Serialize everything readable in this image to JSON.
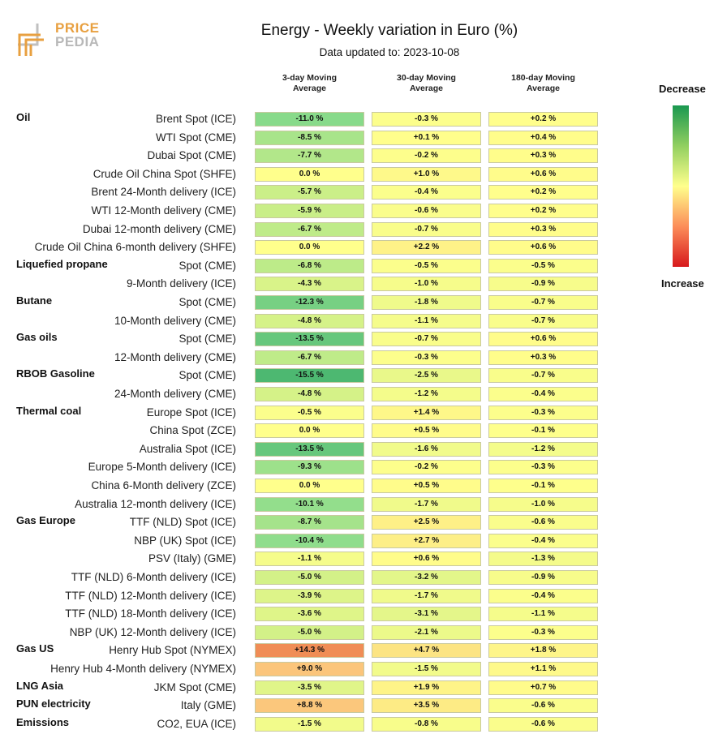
{
  "header": {
    "logo_line1": "PRICE",
    "logo_line2": "PEDIA",
    "title": "Energy - Weekly variation in Euro (%)",
    "subtitle": "Data updated to: 2023-10-08"
  },
  "legend": {
    "top_label": "Decrease",
    "bottom_label": "Increase",
    "colors": [
      "#1a9850",
      "#91cf60",
      "#ffff8c",
      "#fc8d59",
      "#d7191c"
    ]
  },
  "chart_data": {
    "type": "table",
    "title": "Energy - Weekly variation in Euro (%)",
    "columns": [
      {
        "line1": "3-day Moving",
        "line2": "Average"
      },
      {
        "line1": "30-day Moving",
        "line2": "Average"
      },
      {
        "line1": "180-day Moving",
        "line2": "Average"
      }
    ],
    "rows": [
      {
        "group": "Oil",
        "label": "Brent Spot (ICE)",
        "values": [
          -11.0,
          -0.3,
          0.2
        ],
        "display": [
          "-11.0 %",
          "-0.3 %",
          "+0.2 %"
        ]
      },
      {
        "group": "",
        "label": "WTI Spot (CME)",
        "values": [
          -8.5,
          0.1,
          0.4
        ],
        "display": [
          "-8.5 %",
          "+0.1 %",
          "+0.4 %"
        ]
      },
      {
        "group": "",
        "label": "Dubai Spot (CME)",
        "values": [
          -7.7,
          -0.2,
          0.3
        ],
        "display": [
          "-7.7 %",
          "-0.2 %",
          "+0.3 %"
        ]
      },
      {
        "group": "",
        "label": "Crude Oil China Spot (SHFE)",
        "values": [
          0.0,
          1.0,
          0.6
        ],
        "display": [
          "0.0 %",
          "+1.0 %",
          "+0.6 %"
        ]
      },
      {
        "group": "",
        "label": "Brent 24-Month delivery (ICE)",
        "values": [
          -5.7,
          -0.4,
          0.2
        ],
        "display": [
          "-5.7 %",
          "-0.4 %",
          "+0.2 %"
        ]
      },
      {
        "group": "",
        "label": "WTI 12-Month delivery (CME)",
        "values": [
          -5.9,
          -0.6,
          0.2
        ],
        "display": [
          "-5.9 %",
          "-0.6 %",
          "+0.2 %"
        ]
      },
      {
        "group": "",
        "label": "Dubai 12-month delivery (CME)",
        "values": [
          -6.7,
          -0.7,
          0.3
        ],
        "display": [
          "-6.7 %",
          "-0.7 %",
          "+0.3 %"
        ]
      },
      {
        "group": "",
        "label": "Crude Oil China 6-month delivery (SHFE)",
        "values": [
          0.0,
          2.2,
          0.6
        ],
        "display": [
          "0.0 %",
          "+2.2 %",
          "+0.6 %"
        ]
      },
      {
        "group": "Liquefied propane",
        "label": "Spot (CME)",
        "values": [
          -6.8,
          -0.5,
          -0.5
        ],
        "display": [
          "-6.8 %",
          "-0.5 %",
          "-0.5 %"
        ]
      },
      {
        "group": "",
        "label": "9-Month delivery (ICE)",
        "values": [
          -4.3,
          -1.0,
          -0.9
        ],
        "display": [
          "-4.3 %",
          "-1.0 %",
          "-0.9 %"
        ]
      },
      {
        "group": "Butane",
        "label": "Spot (CME)",
        "values": [
          -12.3,
          -1.8,
          -0.7
        ],
        "display": [
          "-12.3 %",
          "-1.8 %",
          "-0.7 %"
        ]
      },
      {
        "group": "",
        "label": "10-Month delivery (CME)",
        "values": [
          -4.8,
          -1.1,
          -0.7
        ],
        "display": [
          "-4.8 %",
          "-1.1 %",
          "-0.7 %"
        ]
      },
      {
        "group": "Gas oils",
        "label": "Spot (CME)",
        "values": [
          -13.5,
          -0.7,
          0.6
        ],
        "display": [
          "-13.5 %",
          "-0.7 %",
          "+0.6 %"
        ]
      },
      {
        "group": "",
        "label": "12-Month delivery (CME)",
        "values": [
          -6.7,
          -0.3,
          0.3
        ],
        "display": [
          "-6.7 %",
          "-0.3 %",
          "+0.3 %"
        ]
      },
      {
        "group": "RBOB Gasoline",
        "label": "Spot (CME)",
        "values": [
          -15.5,
          -2.5,
          -0.7
        ],
        "display": [
          "-15.5 %",
          "-2.5 %",
          "-0.7 %"
        ]
      },
      {
        "group": "",
        "label": "24-Month delivery (CME)",
        "values": [
          -4.8,
          -1.2,
          -0.4
        ],
        "display": [
          "-4.8 %",
          "-1.2 %",
          "-0.4 %"
        ]
      },
      {
        "group": "Thermal coal",
        "label": "Europe Spot (ICE)",
        "values": [
          -0.5,
          1.4,
          -0.3
        ],
        "display": [
          "-0.5 %",
          "+1.4 %",
          "-0.3 %"
        ]
      },
      {
        "group": "",
        "label": "China Spot (ZCE)",
        "values": [
          0.0,
          0.5,
          -0.1
        ],
        "display": [
          "0.0 %",
          "+0.5 %",
          "-0.1 %"
        ]
      },
      {
        "group": "",
        "label": "Australia Spot (ICE)",
        "values": [
          -13.5,
          -1.6,
          -1.2
        ],
        "display": [
          "-13.5 %",
          "-1.6 %",
          "-1.2 %"
        ]
      },
      {
        "group": "",
        "label": "Europe 5-Month delivery (ICE)",
        "values": [
          -9.3,
          -0.2,
          -0.3
        ],
        "display": [
          "-9.3 %",
          "-0.2 %",
          "-0.3 %"
        ]
      },
      {
        "group": "",
        "label": "China 6-Month delivery (ZCE)",
        "values": [
          0.0,
          0.5,
          -0.1
        ],
        "display": [
          "0.0 %",
          "+0.5 %",
          "-0.1 %"
        ]
      },
      {
        "group": "",
        "label": "Australia 12-month delivery (ICE)",
        "values": [
          -10.1,
          -1.7,
          -1.0
        ],
        "display": [
          "-10.1 %",
          "-1.7 %",
          "-1.0 %"
        ]
      },
      {
        "group": "Gas Europe",
        "label": "TTF (NLD) Spot (ICE)",
        "values": [
          -8.7,
          2.5,
          -0.6
        ],
        "display": [
          "-8.7 %",
          "+2.5 %",
          "-0.6 %"
        ]
      },
      {
        "group": "",
        "label": "NBP (UK) Spot (ICE)",
        "values": [
          -10.4,
          2.7,
          -0.4
        ],
        "display": [
          "-10.4 %",
          "+2.7 %",
          "-0.4 %"
        ]
      },
      {
        "group": "",
        "label": "PSV (Italy) (GME)",
        "values": [
          -1.1,
          0.6,
          -1.3
        ],
        "display": [
          "-1.1 %",
          "+0.6 %",
          "-1.3 %"
        ]
      },
      {
        "group": "",
        "label": "TTF (NLD) 6-Month delivery (ICE)",
        "values": [
          -5.0,
          -3.2,
          -0.9
        ],
        "display": [
          "-5.0 %",
          "-3.2 %",
          "-0.9 %"
        ]
      },
      {
        "group": "",
        "label": "TTF (NLD) 12-Month delivery (ICE)",
        "values": [
          -3.9,
          -1.7,
          -0.4
        ],
        "display": [
          "-3.9 %",
          "-1.7 %",
          "-0.4 %"
        ]
      },
      {
        "group": "",
        "label": "TTF (NLD) 18-Month delivery (ICE)",
        "values": [
          -3.6,
          -3.1,
          -1.1
        ],
        "display": [
          "-3.6 %",
          "-3.1 %",
          "-1.1 %"
        ]
      },
      {
        "group": "",
        "label": "NBP (UK) 12-Month delivery (ICE)",
        "values": [
          -5.0,
          -2.1,
          -0.3
        ],
        "display": [
          "-5.0 %",
          "-2.1 %",
          "-0.3 %"
        ]
      },
      {
        "group": "Gas US",
        "label": "Henry Hub Spot (NYMEX)",
        "values": [
          14.3,
          4.7,
          1.8
        ],
        "display": [
          "+14.3 %",
          "+4.7 %",
          "+1.8 %"
        ]
      },
      {
        "group": "",
        "label": "Henry Hub 4-Month delivery (NYMEX)",
        "values": [
          9.0,
          -1.5,
          1.1
        ],
        "display": [
          "+9.0 %",
          "-1.5 %",
          "+1.1 %"
        ]
      },
      {
        "group": "LNG Asia",
        "label": "JKM Spot (CME)",
        "values": [
          -3.5,
          1.9,
          0.7
        ],
        "display": [
          "-3.5 %",
          "+1.9 %",
          "+0.7 %"
        ]
      },
      {
        "group": "PUN electricity",
        "label": "Italy (GME)",
        "values": [
          8.8,
          3.5,
          -0.6
        ],
        "display": [
          "+8.8 %",
          "+3.5 %",
          "-0.6 %"
        ]
      },
      {
        "group": "Emissions",
        "label": "CO2, EUA (ICE)",
        "values": [
          -1.5,
          -0.8,
          -0.6
        ],
        "display": [
          "-1.5 %",
          "-0.8 %",
          "-0.6 %"
        ]
      }
    ]
  }
}
